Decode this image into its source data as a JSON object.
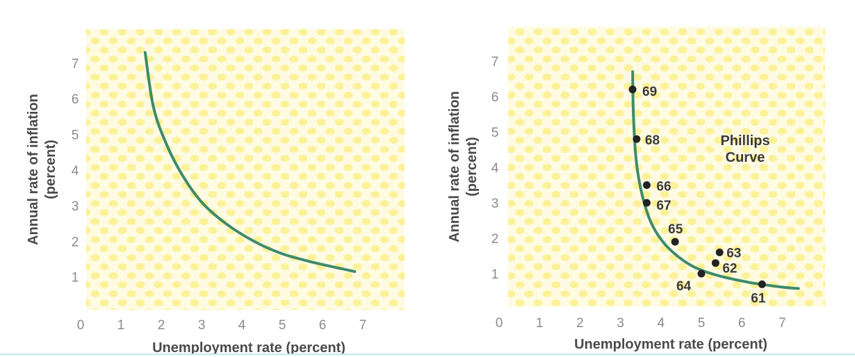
{
  "chart_data": [
    {
      "type": "line",
      "xlabel": "Unemployment rate (percent)",
      "ylabel": "Annual rate of inflation",
      "ylabel_unit": "(percent)",
      "xlim": [
        0,
        8
      ],
      "ylim": [
        0,
        8
      ],
      "x_ticks": [
        "0",
        "1",
        "2",
        "3",
        "4",
        "5",
        "6",
        "7"
      ],
      "y_ticks": [
        "1",
        "2",
        "3",
        "4",
        "5",
        "6",
        "7"
      ],
      "line_color": "#3f8a6c",
      "series": [
        {
          "x": [
            1.6,
            1.8,
            2.1,
            2.5,
            3.0,
            3.6,
            4.3,
            5.0,
            5.8,
            6.6,
            6.8
          ],
          "y": [
            7.3,
            5.8,
            4.8,
            3.9,
            3.1,
            2.5,
            2.0,
            1.65,
            1.4,
            1.2,
            1.15
          ]
        }
      ]
    },
    {
      "type": "scatter",
      "xlabel": "Unemployment rate (percent)",
      "ylabel": "Annual rate of inflation",
      "ylabel_unit": "(percent)",
      "xlim": [
        0,
        8
      ],
      "ylim": [
        0,
        8
      ],
      "x_ticks": [
        "0",
        "1",
        "2",
        "3",
        "4",
        "5",
        "6",
        "7"
      ],
      "y_ticks": [
        "1",
        "2",
        "3",
        "4",
        "5",
        "6",
        "7"
      ],
      "annotation": [
        "Phillips",
        "Curve"
      ],
      "line_color": "#3f8a6c",
      "curve": {
        "x": [
          3.3,
          3.32,
          3.38,
          3.5,
          3.7,
          3.95,
          4.3,
          4.8,
          5.4,
          6.2,
          7.0,
          7.4
        ],
        "y": [
          6.7,
          5.5,
          4.3,
          3.4,
          2.6,
          2.05,
          1.6,
          1.2,
          0.95,
          0.75,
          0.62,
          0.58
        ]
      },
      "points": [
        {
          "label": "69",
          "x": 3.3,
          "y": 6.2
        },
        {
          "label": "68",
          "x": 3.4,
          "y": 4.8
        },
        {
          "label": "66",
          "x": 3.65,
          "y": 3.5
        },
        {
          "label": "67",
          "x": 3.65,
          "y": 3.0
        },
        {
          "label": "65",
          "x": 4.35,
          "y": 1.9
        },
        {
          "label": "63",
          "x": 5.45,
          "y": 1.6
        },
        {
          "label": "62",
          "x": 5.35,
          "y": 1.3
        },
        {
          "label": "64",
          "x": 5.0,
          "y": 1.0
        },
        {
          "label": "61",
          "x": 6.5,
          "y": 0.7
        }
      ]
    }
  ]
}
